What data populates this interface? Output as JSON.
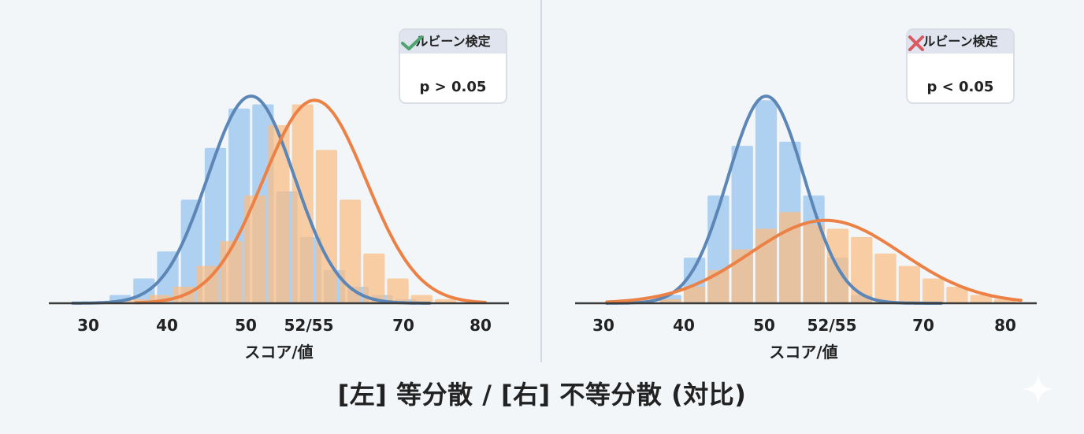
{
  "colors": {
    "blue_bar": "#a7cdef",
    "blue_line": "#5b86b5",
    "orange_bar": "#fbbd82",
    "orange_line": "#ec8146",
    "check": "#4fa36f",
    "cross": "#d85a62"
  },
  "caption": "[左] 等分散 / [右] 不等分散 (対比)",
  "chart_data": [
    {
      "type": "bar",
      "panel": "left",
      "xlabel": "スコア/値",
      "x_ticks": [
        "30",
        "40",
        "50",
        "52/55",
        "70",
        "80"
      ],
      "xlim": [
        25,
        83
      ],
      "badge": {
        "title": "ルビーン検定",
        "result_icon": "check-icon",
        "value": "p > 0.05"
      },
      "series": [
        {
          "color": "blue",
          "bins_x": [
            34,
            37,
            40,
            43,
            46,
            49,
            52,
            55,
            58,
            61,
            64,
            67,
            70
          ],
          "bins_y": [
            0.04,
            0.12,
            0.25,
            0.5,
            0.75,
            0.94,
            0.96,
            0.54,
            0.32,
            0.16,
            0.08,
            0.04,
            0.02
          ],
          "curve": {
            "mean": 50.5,
            "sd": 5.5,
            "peak": 1.0,
            "range": [
              28,
              73
            ]
          }
        },
        {
          "color": "orange",
          "bins_x": [
            36,
            39,
            42,
            45,
            48,
            51,
            54,
            57,
            60,
            63,
            66,
            69,
            72,
            75
          ],
          "bins_y": [
            0.02,
            0.04,
            0.08,
            0.18,
            0.3,
            0.52,
            0.86,
            0.96,
            0.74,
            0.5,
            0.24,
            0.12,
            0.04,
            0.02
          ],
          "curve": {
            "mean": 58.5,
            "sd": 6.5,
            "peak": 0.98,
            "range": [
              36,
              80
            ]
          }
        }
      ]
    },
    {
      "type": "bar",
      "panel": "right",
      "xlabel": "スコア/値",
      "x_ticks": [
        "30",
        "40",
        "50",
        "52/55",
        "70",
        "80"
      ],
      "xlim": [
        26,
        84
      ],
      "badge": {
        "title": "ルビーン検定",
        "result_icon": "cross-icon",
        "value": "p < 0.05"
      },
      "series": [
        {
          "color": "blue",
          "bins_x": [
            38,
            41,
            44,
            47,
            50,
            53,
            56,
            59,
            62
          ],
          "bins_y": [
            0.04,
            0.22,
            0.52,
            0.76,
            0.98,
            0.78,
            0.52,
            0.22,
            0.04
          ],
          "curve": {
            "mean": 50.0,
            "sd": 4.8,
            "peak": 1.0,
            "range": [
              30,
              72
            ]
          }
        },
        {
          "color": "orange",
          "bins_x": [
            38,
            41,
            44,
            47,
            50,
            53,
            56,
            59,
            62,
            65,
            68,
            71,
            74,
            77,
            80
          ],
          "bins_y": [
            0.02,
            0.08,
            0.16,
            0.26,
            0.36,
            0.44,
            0.38,
            0.36,
            0.32,
            0.24,
            0.18,
            0.12,
            0.08,
            0.04,
            0.02
          ],
          "curve": {
            "mean": 57.5,
            "sd": 9.5,
            "peak": 0.4,
            "range": [
              30,
              82
            ]
          }
        }
      ]
    }
  ]
}
